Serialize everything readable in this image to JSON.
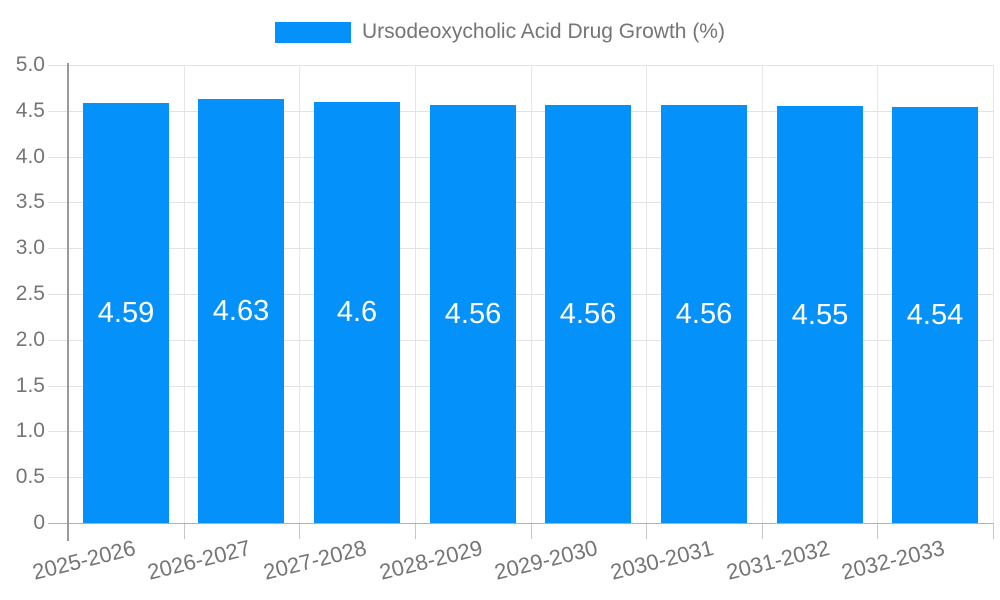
{
  "legend": {
    "label": "Ursodeoxycholic Acid Drug Growth (%)",
    "swatch_color": "#0591fa"
  },
  "chart_data": {
    "type": "bar",
    "title": "Ursodeoxycholic Acid Drug Growth (%)",
    "categories": [
      "2025-2026",
      "2026-2027",
      "2027-2028",
      "2028-2029",
      "2029-2030",
      "2030-2031",
      "2031-2032",
      "2032-2033"
    ],
    "values": [
      4.59,
      4.63,
      4.6,
      4.56,
      4.56,
      4.56,
      4.55,
      4.54
    ],
    "bar_value_labels": [
      "4.59",
      "4.63",
      "4.6",
      "4.56",
      "4.56",
      "4.56",
      "4.55",
      "4.54"
    ],
    "xlabel": "",
    "ylabel": "",
    "ylim": [
      0,
      5
    ],
    "ytick_step": 0.5,
    "ytick_labels": [
      "0",
      "0.5",
      "1.0",
      "1.5",
      "2.0",
      "2.5",
      "3.0",
      "3.5",
      "4.0",
      "4.5",
      "5.0"
    ],
    "grid": true,
    "legend_position": "top-center",
    "colors": {
      "bar": "#0591fa",
      "bar_label": "#ffffff",
      "axis_text": "#757575",
      "gridline": "#e3e3e3",
      "vertical_gridline": "#e6e6e6",
      "axis_line": "#9a9a9a",
      "baseline": "#b0b0b0",
      "background": "#ffffff"
    }
  }
}
